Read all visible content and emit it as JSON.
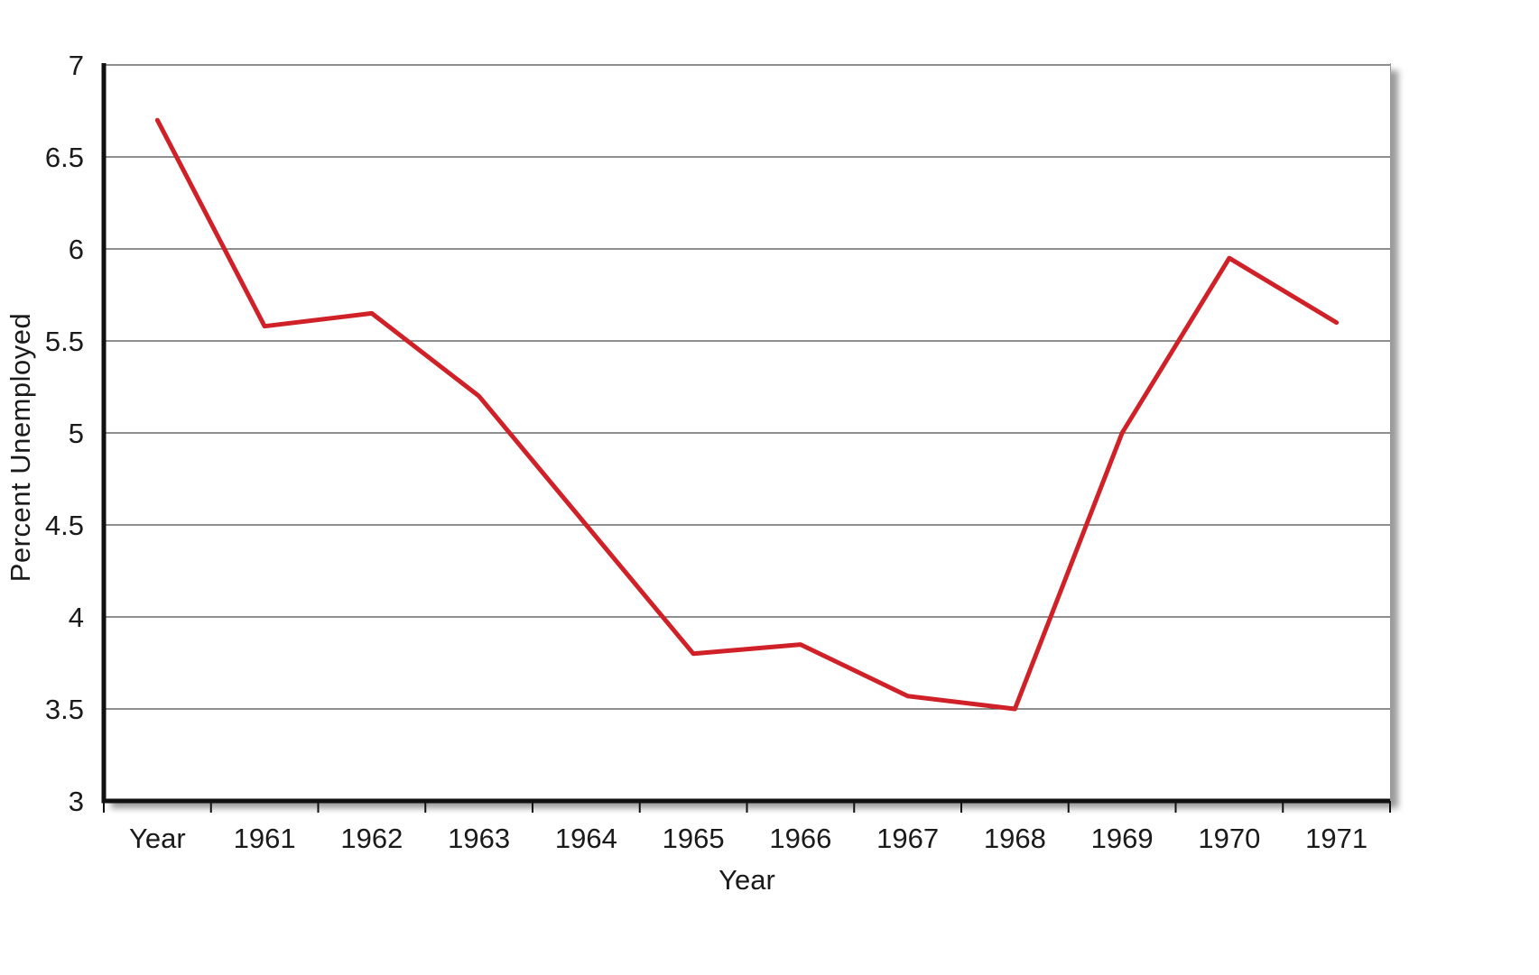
{
  "chart_data": {
    "type": "line",
    "title": "",
    "xlabel": "Year",
    "ylabel": "Percent Unemployed",
    "categories": [
      "Year",
      "1961",
      "1962",
      "1963",
      "1964",
      "1965",
      "1966",
      "1967",
      "1968",
      "1969",
      "1970",
      "1971"
    ],
    "series": [
      {
        "name": "Percent Unemployed",
        "values": [
          6.7,
          5.58,
          5.65,
          5.2,
          4.5,
          3.8,
          3.85,
          3.57,
          3.5,
          5.0,
          5.95,
          5.6
        ]
      }
    ],
    "ylim": [
      3,
      7
    ],
    "yticks": [
      3,
      3.5,
      4,
      4.5,
      5,
      5.5,
      6,
      6.5,
      7
    ],
    "grid": true,
    "legend_position": "none",
    "line_color": "#cf2127",
    "gridline_color": "#4a4a4a",
    "axis_color": "#111111"
  }
}
